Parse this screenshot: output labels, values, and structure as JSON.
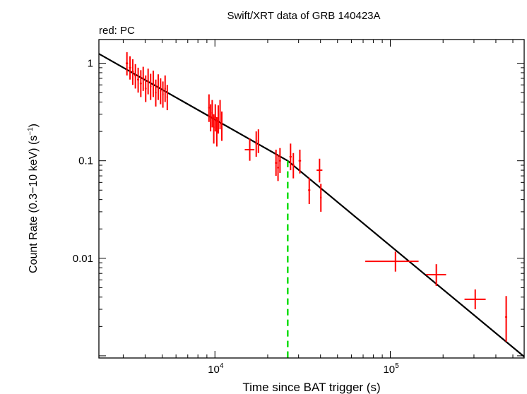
{
  "chart_data": {
    "type": "scatter",
    "title": "Swift/XRT data of GRB 140423A",
    "subtitle": "red: PC",
    "xlabel": "Time since BAT trigger (s)",
    "ylabel_main": "Count Rate (0.3−10 keV) (s",
    "ylabel_sup": "−1",
    "ylabel_tail": ")",
    "x_scale": "log",
    "y_scale": "log",
    "xlim": [
      2180,
      580000
    ],
    "ylim": [
      0.00095,
      1.75
    ],
    "x_ticks": [
      {
        "value": 10000,
        "base": "10",
        "exp": "4"
      },
      {
        "value": 100000,
        "base": "10",
        "exp": "5"
      }
    ],
    "y_ticks": [
      {
        "value": 1,
        "label": "1"
      },
      {
        "value": 0.1,
        "label": "0.1"
      },
      {
        "value": 0.01,
        "label": "0.01"
      }
    ],
    "colors": {
      "data": "#ff0000",
      "model": "#000000",
      "break": "#00dd00"
    },
    "series": [
      {
        "name": "PC",
        "points": [
          {
            "x": 3150,
            "y": 1.0,
            "xlo": 3100,
            "xhi": 3200,
            "ylo": 0.75,
            "yhi": 1.3
          },
          {
            "x": 3280,
            "y": 0.9,
            "xlo": 3230,
            "xhi": 3330,
            "ylo": 0.68,
            "yhi": 1.18
          },
          {
            "x": 3400,
            "y": 0.82,
            "xlo": 3350,
            "xhi": 3450,
            "ylo": 0.6,
            "yhi": 1.1
          },
          {
            "x": 3520,
            "y": 0.75,
            "xlo": 3470,
            "xhi": 3570,
            "ylo": 0.55,
            "yhi": 0.98
          },
          {
            "x": 3650,
            "y": 0.68,
            "xlo": 3600,
            "xhi": 3700,
            "ylo": 0.5,
            "yhi": 0.9
          },
          {
            "x": 3780,
            "y": 0.62,
            "xlo": 3730,
            "xhi": 3830,
            "ylo": 0.45,
            "yhi": 0.85
          },
          {
            "x": 3900,
            "y": 0.7,
            "xlo": 3850,
            "xhi": 3950,
            "ylo": 0.52,
            "yhi": 0.92
          },
          {
            "x": 4030,
            "y": 0.55,
            "xlo": 3980,
            "xhi": 4080,
            "ylo": 0.4,
            "yhi": 0.75
          },
          {
            "x": 4160,
            "y": 0.65,
            "xlo": 4110,
            "xhi": 4210,
            "ylo": 0.48,
            "yhi": 0.88
          },
          {
            "x": 4300,
            "y": 0.58,
            "xlo": 4250,
            "xhi": 4350,
            "ylo": 0.42,
            "yhi": 0.78
          },
          {
            "x": 4450,
            "y": 0.62,
            "xlo": 4400,
            "xhi": 4500,
            "ylo": 0.45,
            "yhi": 0.84
          },
          {
            "x": 4600,
            "y": 0.5,
            "xlo": 4550,
            "xhi": 4650,
            "ylo": 0.36,
            "yhi": 0.68
          },
          {
            "x": 4750,
            "y": 0.57,
            "xlo": 4700,
            "xhi": 4800,
            "ylo": 0.42,
            "yhi": 0.77
          },
          {
            "x": 4900,
            "y": 0.52,
            "xlo": 4850,
            "xhi": 4950,
            "ylo": 0.38,
            "yhi": 0.7
          },
          {
            "x": 5050,
            "y": 0.48,
            "xlo": 5000,
            "xhi": 5100,
            "ylo": 0.35,
            "yhi": 0.65
          },
          {
            "x": 5200,
            "y": 0.55,
            "xlo": 5150,
            "xhi": 5250,
            "ylo": 0.4,
            "yhi": 0.75
          },
          {
            "x": 5350,
            "y": 0.45,
            "xlo": 5300,
            "xhi": 5400,
            "ylo": 0.33,
            "yhi": 0.6
          },
          {
            "x": 9250,
            "y": 0.35,
            "xlo": 9150,
            "xhi": 9350,
            "ylo": 0.25,
            "yhi": 0.48
          },
          {
            "x": 9450,
            "y": 0.28,
            "xlo": 9350,
            "xhi": 9550,
            "ylo": 0.2,
            "yhi": 0.38
          },
          {
            "x": 9650,
            "y": 0.31,
            "xlo": 9550,
            "xhi": 9750,
            "ylo": 0.22,
            "yhi": 0.42
          },
          {
            "x": 9850,
            "y": 0.22,
            "xlo": 9750,
            "xhi": 9950,
            "ylo": 0.15,
            "yhi": 0.3
          },
          {
            "x": 10050,
            "y": 0.28,
            "xlo": 9950,
            "xhi": 10150,
            "ylo": 0.2,
            "yhi": 0.38
          },
          {
            "x": 10250,
            "y": 0.2,
            "xlo": 10150,
            "xhi": 10350,
            "ylo": 0.14,
            "yhi": 0.28
          },
          {
            "x": 10450,
            "y": 0.27,
            "xlo": 10350,
            "xhi": 10550,
            "ylo": 0.19,
            "yhi": 0.37
          },
          {
            "x": 10700,
            "y": 0.3,
            "xlo": 10600,
            "xhi": 10800,
            "ylo": 0.21,
            "yhi": 0.42
          },
          {
            "x": 10950,
            "y": 0.23,
            "xlo": 10850,
            "xhi": 11050,
            "ylo": 0.16,
            "yhi": 0.32
          },
          {
            "x": 15800,
            "y": 0.13,
            "xlo": 14800,
            "xhi": 16800,
            "ylo": 0.1,
            "yhi": 0.17
          },
          {
            "x": 17200,
            "y": 0.15,
            "xlo": 17000,
            "xhi": 17400,
            "ylo": 0.11,
            "yhi": 0.2
          },
          {
            "x": 17700,
            "y": 0.16,
            "xlo": 17500,
            "xhi": 17900,
            "ylo": 0.12,
            "yhi": 0.21
          },
          {
            "x": 22300,
            "y": 0.095,
            "xlo": 22000,
            "xhi": 22600,
            "ylo": 0.07,
            "yhi": 0.13
          },
          {
            "x": 22900,
            "y": 0.085,
            "xlo": 22600,
            "xhi": 23200,
            "ylo": 0.062,
            "yhi": 0.115
          },
          {
            "x": 23500,
            "y": 0.1,
            "xlo": 23200,
            "xhi": 23800,
            "ylo": 0.075,
            "yhi": 0.135
          },
          {
            "x": 27000,
            "y": 0.11,
            "xlo": 26600,
            "xhi": 27400,
            "ylo": 0.08,
            "yhi": 0.15
          },
          {
            "x": 28000,
            "y": 0.09,
            "xlo": 27600,
            "xhi": 28400,
            "ylo": 0.066,
            "yhi": 0.12
          },
          {
            "x": 30500,
            "y": 0.1,
            "xlo": 30000,
            "xhi": 31000,
            "ylo": 0.074,
            "yhi": 0.13
          },
          {
            "x": 34500,
            "y": 0.05,
            "xlo": 34000,
            "xhi": 35000,
            "ylo": 0.036,
            "yhi": 0.067
          },
          {
            "x": 39500,
            "y": 0.08,
            "xlo": 38000,
            "xhi": 41000,
            "ylo": 0.06,
            "yhi": 0.105
          },
          {
            "x": 40200,
            "y": 0.042,
            "xlo": 39800,
            "xhi": 40600,
            "ylo": 0.03,
            "yhi": 0.058
          },
          {
            "x": 107000,
            "y": 0.0093,
            "xlo": 72000,
            "xhi": 145000,
            "ylo": 0.0073,
            "yhi": 0.0117
          },
          {
            "x": 183000,
            "y": 0.0068,
            "xlo": 160000,
            "xhi": 208000,
            "ylo": 0.0052,
            "yhi": 0.0087
          },
          {
            "x": 305000,
            "y": 0.0038,
            "xlo": 265000,
            "xhi": 350000,
            "ylo": 0.003,
            "yhi": 0.0048
          },
          {
            "x": 458000,
            "y": 0.0025,
            "xlo": 452000,
            "xhi": 464000,
            "ylo": 0.0014,
            "yhi": 0.0041
          }
        ]
      }
    ],
    "model": {
      "type": "broken_power_law",
      "segments": [
        {
          "x0": 2180,
          "y0": 1.25,
          "x1": 26000,
          "y1": 0.1
        },
        {
          "x0": 26000,
          "y0": 0.1,
          "x1": 580000,
          "y1": 0.00098
        }
      ]
    },
    "break_time": {
      "x": 26000,
      "y": 0.1
    }
  }
}
